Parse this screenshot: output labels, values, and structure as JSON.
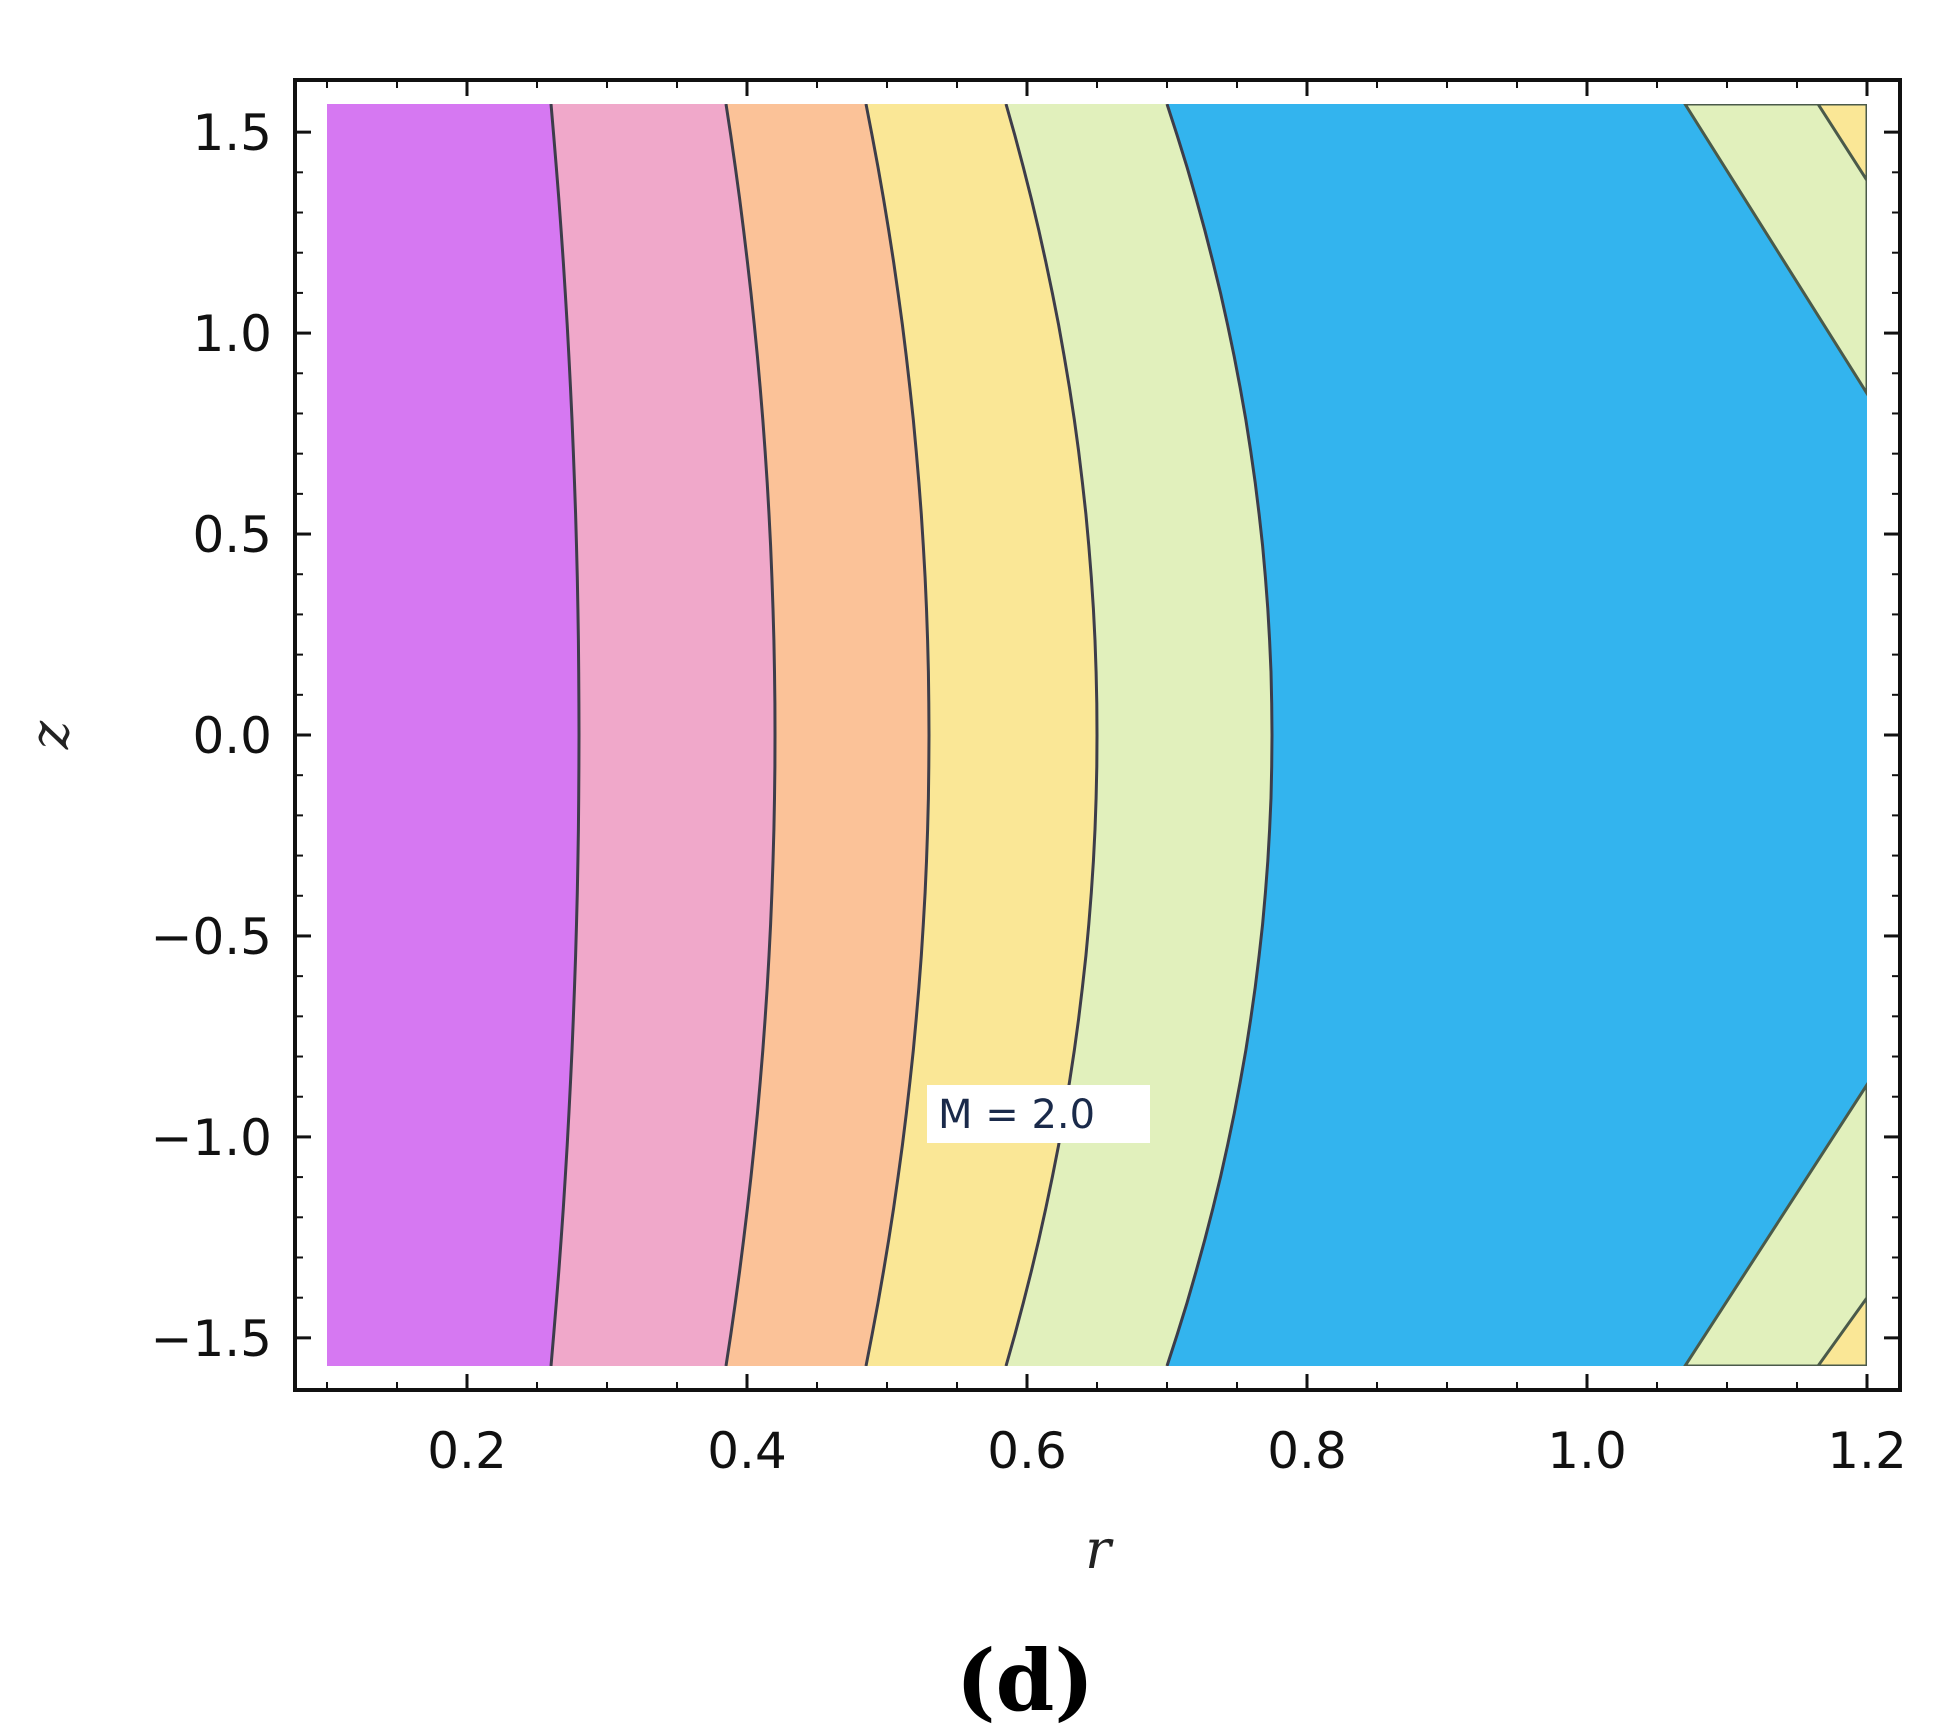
{
  "chart_data": {
    "type": "contour",
    "xlabel": "r",
    "ylabel": "z",
    "xlim": [
      0.1,
      1.2
    ],
    "ylim": [
      -1.57,
      1.57
    ],
    "xticks": [
      {
        "value": 0.2,
        "label": "0.2"
      },
      {
        "value": 0.4,
        "label": "0.4"
      },
      {
        "value": 0.6,
        "label": "0.6"
      },
      {
        "value": 0.8,
        "label": "0.8"
      },
      {
        "value": 1.0,
        "label": "1.0"
      },
      {
        "value": 1.2,
        "label": "1.2"
      }
    ],
    "yticks": [
      {
        "value": 1.5,
        "label": "1.5"
      },
      {
        "value": 1.0,
        "label": "1.0"
      },
      {
        "value": 0.5,
        "label": "0.5"
      },
      {
        "value": 0.0,
        "label": "0.0"
      },
      {
        "value": -0.5,
        "label": "−0.5"
      },
      {
        "value": -1.0,
        "label": "−1.0"
      },
      {
        "value": -1.5,
        "label": "−1.5"
      }
    ],
    "band_colors": [
      "#d678f2",
      "#f0a8ca",
      "#fbc298",
      "#fae796",
      "#e1f0bc",
      "#33b4ee"
    ],
    "contours": [
      {
        "r_center": 0.28,
        "r_edge": 0.26
      },
      {
        "r_center": 0.42,
        "r_edge": 0.385
      },
      {
        "r_center": 0.53,
        "r_edge": 0.485
      },
      {
        "r_center": 0.65,
        "r_edge": 0.585
      },
      {
        "r_center": 0.775,
        "r_edge": 0.7
      }
    ],
    "corner_contours": [
      {
        "color": "#e1f0bc",
        "points": [
          [
            1.2,
            0.85
          ],
          [
            1.07,
            1.57
          ],
          [
            1.2,
            1.57
          ]
        ]
      },
      {
        "color": "#fae796",
        "points": [
          [
            1.2,
            1.38
          ],
          [
            1.165,
            1.57
          ],
          [
            1.2,
            1.57
          ]
        ]
      },
      {
        "color": "#e1f0bc",
        "points": [
          [
            1.2,
            -0.87
          ],
          [
            1.07,
            -1.57
          ],
          [
            1.2,
            -1.57
          ]
        ]
      },
      {
        "color": "#fae796",
        "points": [
          [
            1.2,
            -1.4
          ],
          [
            1.165,
            -1.57
          ],
          [
            1.2,
            -1.57
          ]
        ]
      }
    ],
    "annotation": {
      "text": "M = 2.0",
      "r": 0.565,
      "z": -0.93
    },
    "panel_label": "(d)"
  }
}
